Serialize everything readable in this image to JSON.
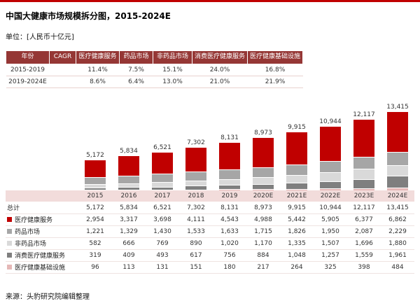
{
  "page": {
    "title": "中国大健康市场规模拆分图，2015-2024E",
    "unit": "单位：[人民币十亿元]",
    "source": "来源：头豹研究院编辑整理"
  },
  "colors": {
    "accent_red": "#C00000",
    "cagr_header_bg": "#953735",
    "year_header_bg": "#F2DCDB"
  },
  "cagr_table": {
    "headers": [
      "年份",
      "CAGR",
      "医疗健康服务",
      "药品市场",
      "非药品市场",
      "消费医疗健康服务",
      "医疗健康基础设施"
    ],
    "rows": [
      {
        "year": "2015-2019",
        "values": [
          "11.4%",
          "7.5%",
          "15.1%",
          "24.0%",
          "16.8%"
        ]
      },
      {
        "year": "2019-2024E",
        "values": [
          "8.6%",
          "6.4%",
          "13.0%",
          "21.0%",
          "21.9%"
        ]
      }
    ]
  },
  "chart_data": {
    "type": "bar",
    "stacked": true,
    "title": "中国大健康市场规模拆分图，2015-2024E",
    "ylabel": "人民币十亿元",
    "ylim": [
      0,
      14000
    ],
    "grid": false,
    "legend_position": "table-below",
    "categories": [
      "2015",
      "2016",
      "2017",
      "2018",
      "2019",
      "2020E",
      "2021E",
      "2022E",
      "2023E",
      "2024E"
    ],
    "totals": [
      "5,172",
      "5,834",
      "6,521",
      "7,302",
      "8,131",
      "8,973",
      "9,915",
      "10,944",
      "12,117",
      "13,415"
    ],
    "series": [
      {
        "name": "医疗健康服务",
        "color": "#C00000",
        "values": [
          2954,
          3317,
          3698,
          4111,
          4543,
          4988,
          5442,
          5905,
          6377,
          6862
        ]
      },
      {
        "name": "药品市场",
        "color": "#A6A6A6",
        "values": [
          1221,
          1329,
          1430,
          1533,
          1633,
          1715,
          1826,
          1950,
          2087,
          2229
        ]
      },
      {
        "name": "非药品市场",
        "color": "#D9D9D9",
        "values": [
          582,
          666,
          769,
          890,
          1020,
          1170,
          1335,
          1507,
          1696,
          1880
        ]
      },
      {
        "name": "消费医疗健康服务",
        "color": "#7F7F7F",
        "values": [
          319,
          409,
          493,
          617,
          756,
          884,
          1048,
          1257,
          1559,
          1961
        ]
      },
      {
        "name": "医疗健康基础设施",
        "color": "#E5B8B7",
        "values": [
          96,
          113,
          131,
          151,
          180,
          217,
          264,
          325,
          398,
          484
        ]
      }
    ]
  },
  "table": {
    "rows": [
      {
        "label": "总计",
        "color": null,
        "values": [
          "5,172",
          "5,834",
          "6,521",
          "7,302",
          "8,131",
          "8,973",
          "9,915",
          "10,944",
          "12,117",
          "13,415"
        ]
      },
      {
        "label": "医疗健康服务",
        "color": "#C00000",
        "values": [
          "2,954",
          "3,317",
          "3,698",
          "4,111",
          "4,543",
          "4,988",
          "5,442",
          "5,905",
          "6,377",
          "6,862"
        ]
      },
      {
        "label": "药品市场",
        "color": "#A6A6A6",
        "values": [
          "1,221",
          "1,329",
          "1,430",
          "1,533",
          "1,633",
          "1,715",
          "1,826",
          "1,950",
          "2,087",
          "2,229"
        ]
      },
      {
        "label": "非药品市场",
        "color": "#D9D9D9",
        "values": [
          "582",
          "666",
          "769",
          "890",
          "1,020",
          "1,170",
          "1,335",
          "1,507",
          "1,696",
          "1,880"
        ]
      },
      {
        "label": "消费医疗健康服务",
        "color": "#7F7F7F",
        "values": [
          "319",
          "409",
          "493",
          "617",
          "756",
          "884",
          "1,048",
          "1,257",
          "1,559",
          "1,961"
        ]
      },
      {
        "label": "医疗健康基础设施",
        "color": "#E5B8B7",
        "values": [
          "96",
          "113",
          "131",
          "151",
          "180",
          "217",
          "264",
          "325",
          "398",
          "484"
        ]
      }
    ]
  }
}
